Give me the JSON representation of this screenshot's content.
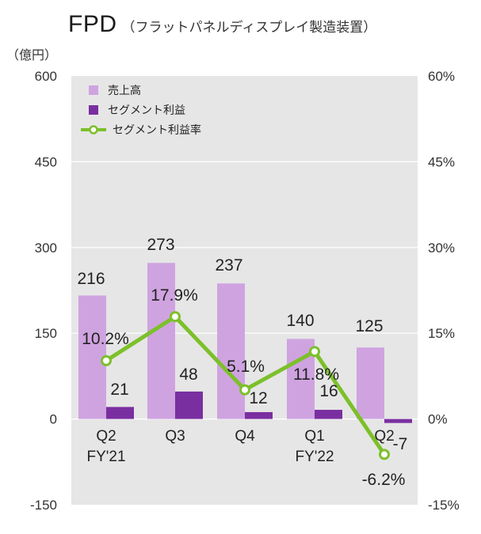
{
  "title": {
    "main": "FPD",
    "sub": "（フラットパネルディスプレイ製造装置）"
  },
  "y_unit": "（億円）",
  "colors": {
    "plot_bg": "#e6e6e6",
    "sales": "#cfa3e0",
    "profit": "#7a2fa0",
    "rate_line": "#7cc02a",
    "grid": "#ffffff"
  },
  "chart_data": {
    "type": "bar+line",
    "categories": [
      {
        "q": "Q2",
        "fy": "FY'21"
      },
      {
        "q": "Q3",
        "fy": ""
      },
      {
        "q": "Q4",
        "fy": ""
      },
      {
        "q": "Q1",
        "fy": "FY'22"
      },
      {
        "q": "Q2",
        "fy": ""
      }
    ],
    "series": [
      {
        "name": "売上高",
        "type": "bar",
        "axis": "left",
        "values": [
          216,
          273,
          237,
          140,
          125
        ],
        "labels": [
          "216",
          "273",
          "237",
          "140",
          "125"
        ]
      },
      {
        "name": "セグメント利益",
        "type": "bar",
        "axis": "left",
        "values": [
          21,
          48,
          12,
          16,
          -7
        ],
        "labels": [
          "21",
          "48",
          "12",
          "16",
          "-7"
        ]
      },
      {
        "name": "セグメント利益率",
        "type": "line",
        "axis": "right",
        "values": [
          10.2,
          17.9,
          5.1,
          11.8,
          -6.2
        ],
        "labels": [
          "10.2%",
          "17.9%",
          "5.1%",
          "11.8%",
          "-6.2%"
        ]
      }
    ],
    "ylim_left": [
      -150,
      600
    ],
    "yticks_left": [
      "-150",
      "0",
      "150",
      "300",
      "450",
      "600"
    ],
    "ylim_right": [
      -15,
      60
    ],
    "yticks_right": [
      "-15%",
      "0%",
      "15%",
      "30%",
      "45%",
      "60%"
    ],
    "legend_position": "top-left"
  }
}
